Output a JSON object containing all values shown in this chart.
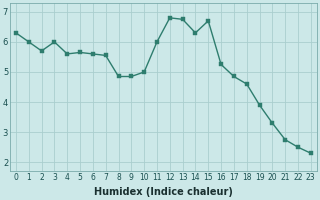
{
  "x": [
    0,
    1,
    2,
    3,
    4,
    5,
    6,
    7,
    8,
    9,
    10,
    11,
    12,
    13,
    14,
    15,
    16,
    17,
    18,
    19,
    20,
    21,
    22,
    23
  ],
  "y": [
    6.3,
    6.0,
    5.7,
    6.0,
    5.6,
    5.65,
    5.6,
    5.55,
    4.85,
    4.85,
    5.0,
    6.0,
    6.8,
    6.75,
    6.3,
    6.7,
    5.25,
    4.85,
    4.6,
    3.9,
    3.3,
    2.75,
    2.5,
    2.3
  ],
  "line_color": "#2e7d6e",
  "marker_color": "#2e7d6e",
  "bg_color": "#cce8e8",
  "grid_color": "#aacece",
  "xlabel": "Humidex (Indice chaleur)",
  "ylim": [
    1.7,
    7.3
  ],
  "xlim": [
    -0.5,
    23.5
  ],
  "yticks": [
    2,
    3,
    4,
    5,
    6,
    7
  ],
  "xtick_labels": [
    "0",
    "1",
    "2",
    "3",
    "4",
    "5",
    "6",
    "7",
    "8",
    "9",
    "10",
    "11",
    "12",
    "13",
    "14",
    "15",
    "16",
    "17",
    "18",
    "19",
    "20",
    "21",
    "22",
    "23"
  ],
  "line_width": 1.0,
  "marker_size": 2.5,
  "xlabel_fontsize": 7,
  "tick_fontsize": 5.5
}
